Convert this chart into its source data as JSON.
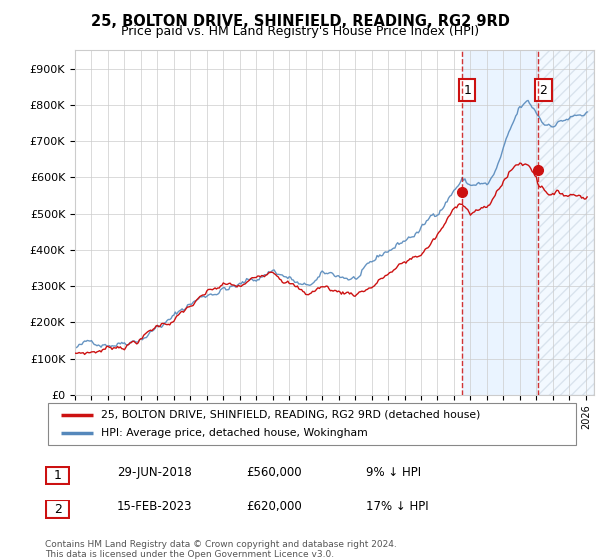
{
  "title": "25, BOLTON DRIVE, SHINFIELD, READING, RG2 9RD",
  "subtitle": "Price paid vs. HM Land Registry's House Price Index (HPI)",
  "legend_line1": "25, BOLTON DRIVE, SHINFIELD, READING, RG2 9RD (detached house)",
  "legend_line2": "HPI: Average price, detached house, Wokingham",
  "annotation1": {
    "label": "1",
    "date": "29-JUN-2018",
    "price": "£560,000",
    "hpi": "9% ↓ HPI"
  },
  "annotation2": {
    "label": "2",
    "date": "15-FEB-2023",
    "price": "£620,000",
    "hpi": "17% ↓ HPI"
  },
  "footer1": "Contains HM Land Registry data © Crown copyright and database right 2024.",
  "footer2": "This data is licensed under the Open Government Licence v3.0.",
  "hpi_color": "#5588bb",
  "price_color": "#cc1111",
  "annotation_color": "#cc1111",
  "fill_color": "#ccddf0",
  "ylim": [
    0,
    950000
  ],
  "yticks": [
    0,
    100000,
    200000,
    300000,
    400000,
    500000,
    600000,
    700000,
    800000,
    900000
  ],
  "ytick_labels": [
    "£0",
    "£100K",
    "£200K",
    "£300K",
    "£400K",
    "£500K",
    "£600K",
    "£700K",
    "£800K",
    "£900K"
  ],
  "vline1_x": 2018.5,
  "vline2_x": 2023.12,
  "marker1_x": 2018.5,
  "marker1_y": 560000,
  "marker2_x": 2023.12,
  "marker2_y": 620000,
  "xmin": 1995,
  "xmax": 2026.5,
  "xticks": [
    1995,
    1996,
    1997,
    1998,
    1999,
    2000,
    2001,
    2002,
    2003,
    2004,
    2005,
    2006,
    2007,
    2008,
    2009,
    2010,
    2011,
    2012,
    2013,
    2014,
    2015,
    2016,
    2017,
    2018,
    2019,
    2020,
    2021,
    2022,
    2023,
    2024,
    2025,
    2026
  ]
}
